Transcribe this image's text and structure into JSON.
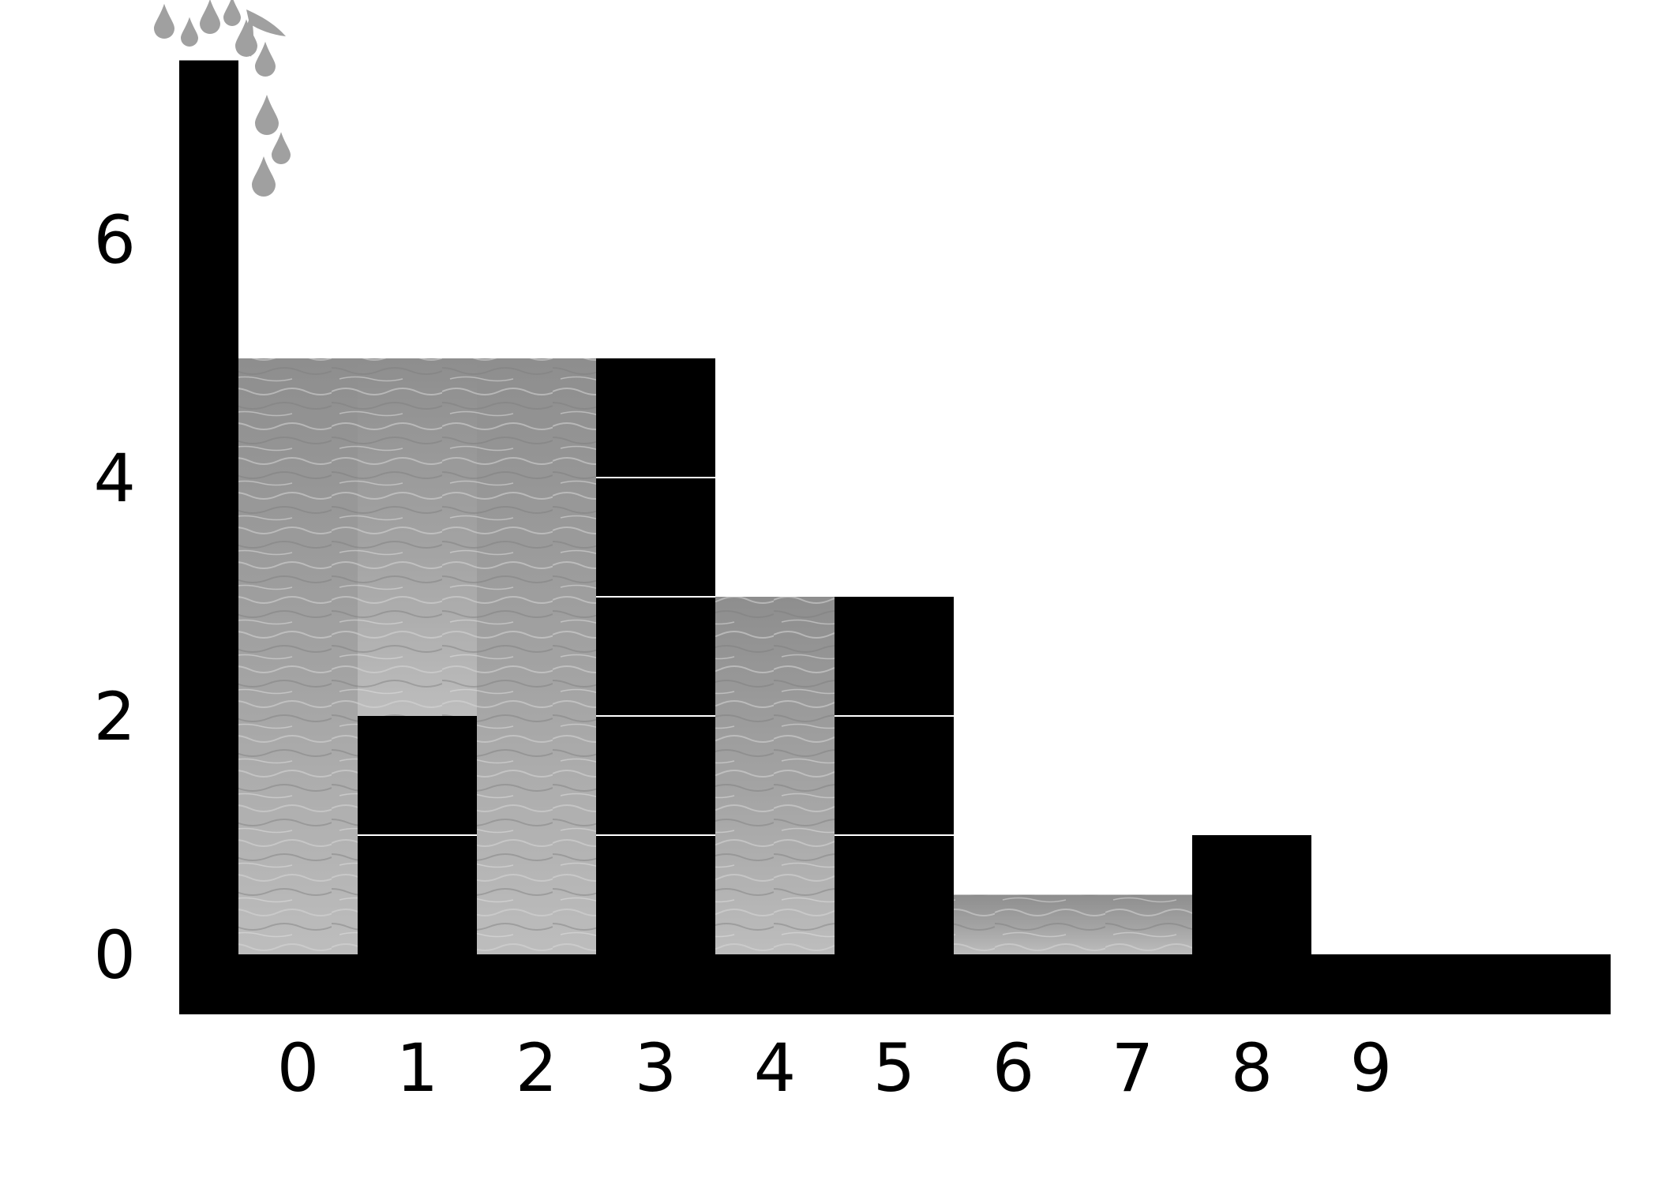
{
  "chart_data": {
    "type": "bar",
    "categories": [
      "0",
      "1",
      "2",
      "3",
      "4",
      "5",
      "6",
      "7",
      "8",
      "9"
    ],
    "values": [
      0,
      2,
      0,
      5,
      0,
      3,
      0,
      0,
      1,
      0
    ],
    "water_level": [
      5,
      5,
      5,
      0,
      3,
      0,
      0.5,
      0.5,
      0,
      0
    ],
    "x_ticks": [
      "0",
      "1",
      "2",
      "3",
      "4",
      "5",
      "6",
      "7",
      "8",
      "9"
    ],
    "y_ticks": [
      "0",
      "2",
      "4",
      "6"
    ],
    "title": "",
    "xlabel": "",
    "ylabel": "",
    "ylim": [
      0,
      7.5
    ],
    "grid": false,
    "colors": {
      "blocks": "#000000",
      "water": "#9a9a9a",
      "water_light": "#c8c8c8",
      "drops": "#a0a0a0",
      "divider": "#ffffff"
    }
  }
}
